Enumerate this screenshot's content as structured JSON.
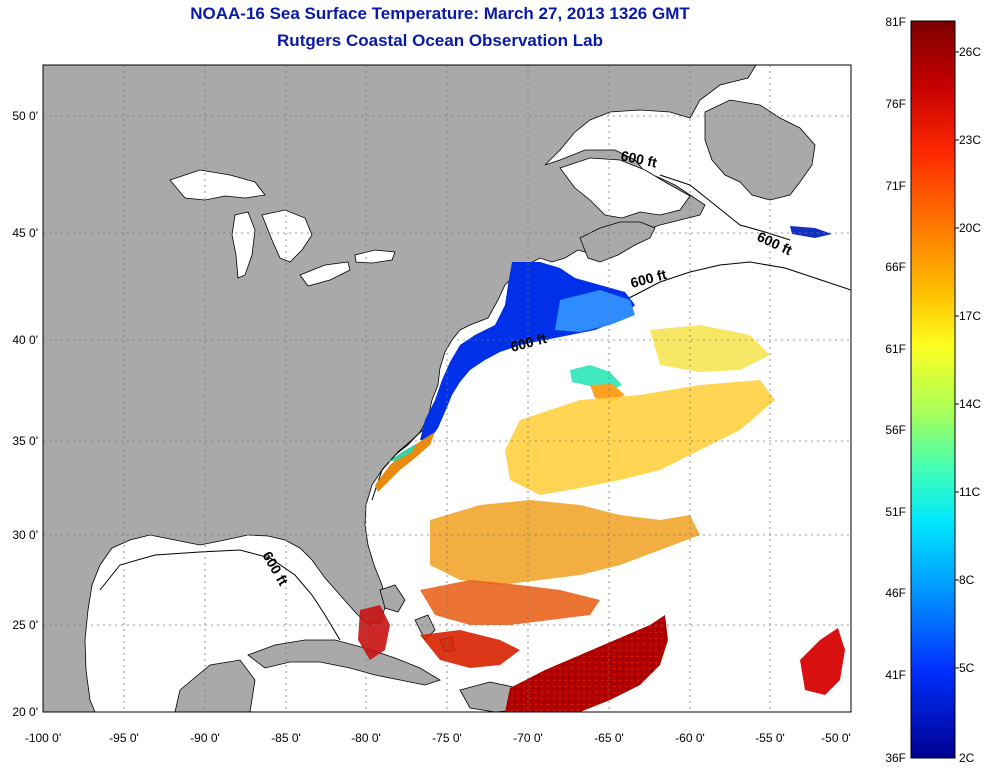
{
  "title_line1": "NOAA-16 Sea Surface Temperature:  March 27, 2013 1326 GMT",
  "title_line2": "Rutgers Coastal Ocean Observation Lab",
  "map": {
    "lon_range": [
      -100,
      -50
    ],
    "lat_range": [
      20,
      52.5
    ],
    "lon_ticks": [
      "-100 0'",
      "-95 0'",
      "-90 0'",
      "-85 0'",
      "-80 0'",
      "-75 0'",
      "-70 0'",
      "-65 0'",
      "-60 0'",
      "-55 0'",
      "-50 0'"
    ],
    "lat_ticks": [
      "20 0'",
      "25 0'",
      "30 0'",
      "35 0'",
      "40 0'",
      "45 0'",
      "50 0'"
    ],
    "contour_labels": [
      "600 ft",
      "600 ft",
      "600 ft",
      "600 ft",
      "600 ft"
    ],
    "land_color": "#a9a9a9",
    "ocean_color": "#ffffff"
  },
  "colorbar": {
    "fahrenheit_labels": [
      "81F",
      "76F",
      "71F",
      "66F",
      "61F",
      "56F",
      "51F",
      "46F",
      "41F",
      "36F"
    ],
    "celsius_labels": [
      "26C",
      "23C",
      "20C",
      "17C",
      "14C",
      "11C",
      "8C",
      "5C",
      "2C"
    ],
    "colors": [
      "#7a0000",
      "#c80000",
      "#ff2a00",
      "#ff7a00",
      "#ffc000",
      "#ffff20",
      "#a8ff58",
      "#40ffb8",
      "#00e8ff",
      "#0090ff",
      "#0030ff",
      "#000090"
    ]
  }
}
